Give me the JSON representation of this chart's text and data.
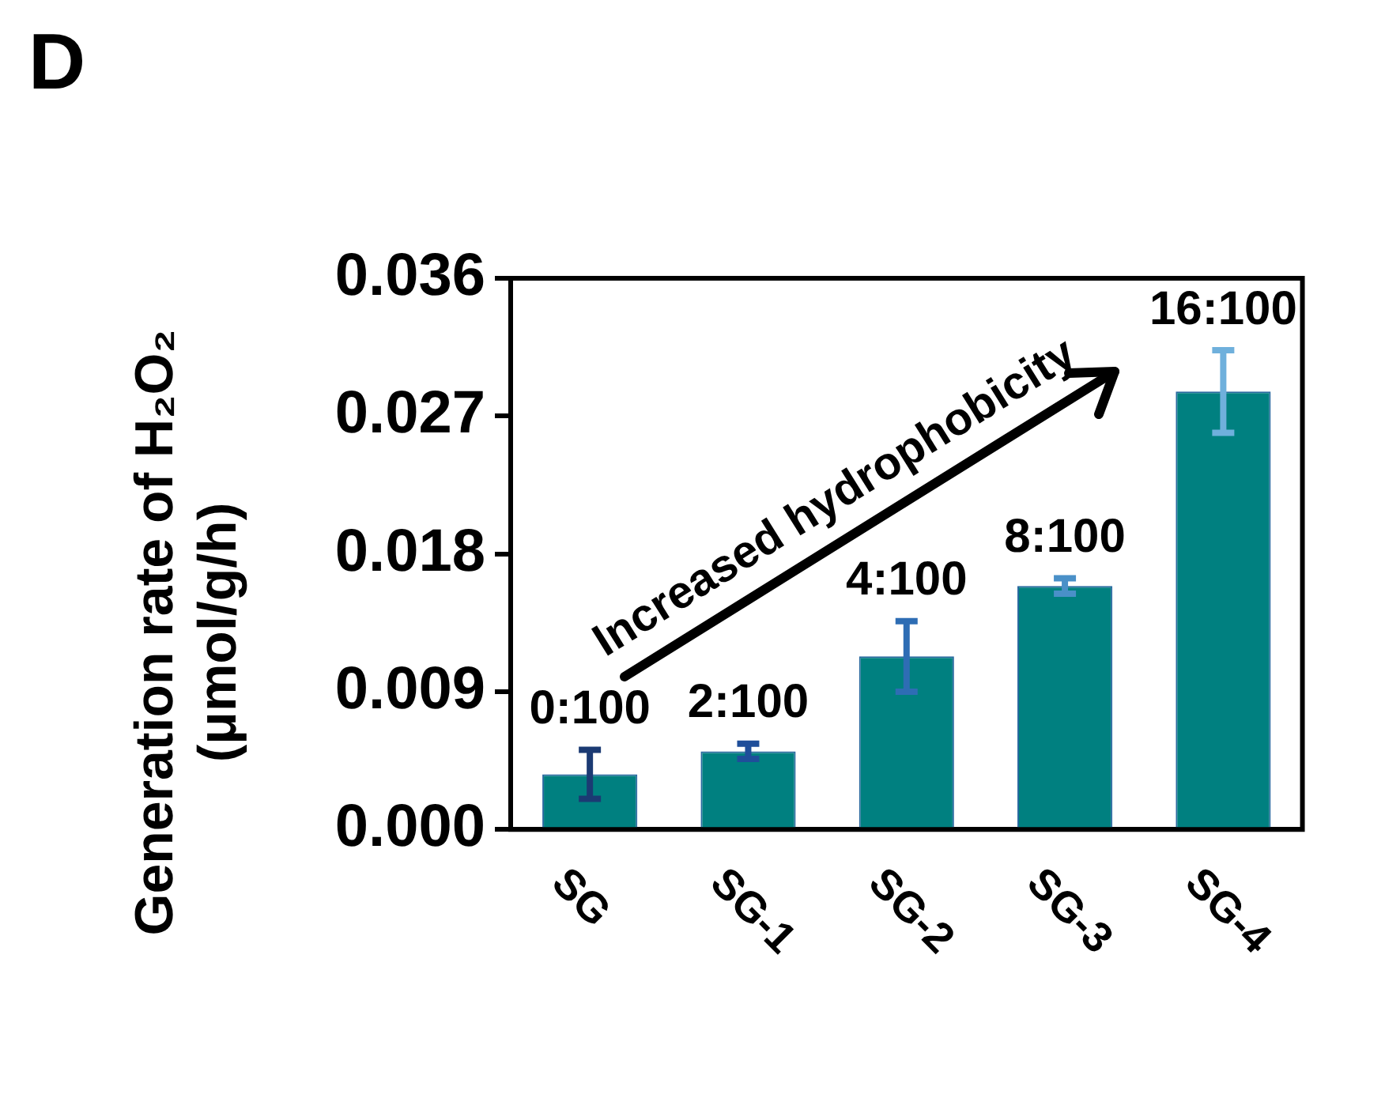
{
  "chart_data": {
    "type": "bar",
    "ylabel": "Generation rate of H₂O₂\n(μmol/g/h)",
    "categories": [
      "SG",
      "SG-1",
      "SG-2",
      "SG-3",
      "SG-4"
    ],
    "values": [
      0.0036,
      0.0051,
      0.0113,
      0.0159,
      0.0286
    ],
    "errors": [
      0.0016,
      0.0005,
      0.0023,
      0.0005,
      0.0027
    ],
    "color": "#008080",
    "ylim": [
      0,
      0.036
    ],
    "yticks": [
      {
        "value": 0,
        "label": "0.000"
      },
      0.009,
      0.018,
      0.027,
      0.036
    ],
    "grid": false,
    "legend": false,
    "annotations": [
      "D",
      "Increased hydrophobicity",
      {
        "text": "0:100",
        "x": "SG",
        "y": 0.0052
      },
      {
        "text": "2:100",
        "x": "SG-1",
        "y": 0.0056
      },
      {
        "text": "4:100",
        "x": "SG-2",
        "y": 0.0136
      },
      {
        "text": "8:100",
        "x": "SG-3",
        "y": 0.0164
      },
      {
        "text": "16:100",
        "x": "SG-4",
        "y": 0.0313
      }
    ]
  }
}
